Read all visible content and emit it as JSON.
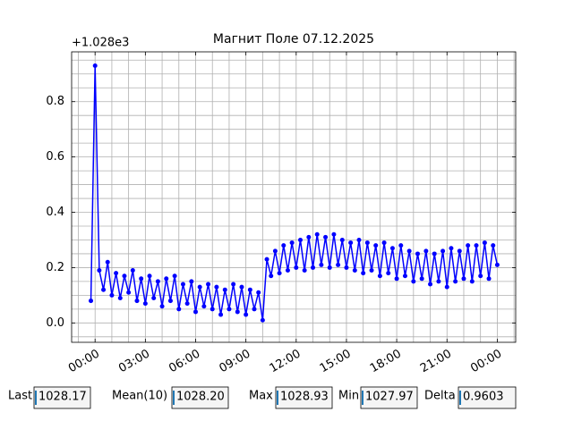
{
  "chart_data": {
    "type": "line",
    "title": "Магнит Поле 07.12.2025",
    "y_offset_label": "+1.028e3",
    "x": [
      -0.25,
      0,
      0.25,
      0.5,
      0.75,
      1,
      1.25,
      1.5,
      1.75,
      2,
      2.25,
      2.5,
      2.75,
      3,
      3.25,
      3.5,
      3.75,
      4,
      4.25,
      4.5,
      4.75,
      5,
      5.25,
      5.5,
      5.75,
      6,
      6.25,
      6.5,
      6.75,
      7,
      7.25,
      7.5,
      7.75,
      8,
      8.25,
      8.5,
      8.75,
      9,
      9.25,
      9.5,
      9.75,
      10,
      10.25,
      10.5,
      10.75,
      11,
      11.25,
      11.5,
      11.75,
      12,
      12.25,
      12.5,
      12.75,
      13,
      13.25,
      13.5,
      13.75,
      14,
      14.25,
      14.5,
      14.75,
      15,
      15.25,
      15.5,
      15.75,
      16,
      16.25,
      16.5,
      16.75,
      17,
      17.25,
      17.5,
      17.75,
      18,
      18.25,
      18.5,
      18.75,
      19,
      19.25,
      19.5,
      19.75,
      20,
      20.25,
      20.5,
      20.75,
      21,
      21.25,
      21.5,
      21.75,
      22,
      22.25,
      22.5,
      22.75,
      23,
      23.25,
      23.5,
      23.75,
      24
    ],
    "series": [
      {
        "color": "#0000ff",
        "values": [
          0.08,
          0.93,
          0.19,
          0.12,
          0.22,
          0.1,
          0.18,
          0.09,
          0.17,
          0.11,
          0.19,
          0.08,
          0.16,
          0.07,
          0.17,
          0.09,
          0.15,
          0.06,
          0.16,
          0.08,
          0.17,
          0.05,
          0.14,
          0.07,
          0.15,
          0.04,
          0.13,
          0.06,
          0.14,
          0.05,
          0.13,
          0.03,
          0.12,
          0.05,
          0.14,
          0.04,
          0.13,
          0.03,
          0.12,
          0.05,
          0.11,
          0.01,
          0.23,
          0.17,
          0.26,
          0.18,
          0.28,
          0.19,
          0.29,
          0.2,
          0.3,
          0.19,
          0.31,
          0.2,
          0.32,
          0.21,
          0.31,
          0.2,
          0.32,
          0.21,
          0.3,
          0.2,
          0.29,
          0.19,
          0.3,
          0.18,
          0.29,
          0.19,
          0.28,
          0.17,
          0.29,
          0.18,
          0.27,
          0.16,
          0.28,
          0.17,
          0.26,
          0.15,
          0.25,
          0.16,
          0.26,
          0.14,
          0.25,
          0.15,
          0.26,
          0.13,
          0.27,
          0.15,
          0.26,
          0.16,
          0.28,
          0.15,
          0.28,
          0.17,
          0.29,
          0.16,
          0.28,
          0.21
        ]
      }
    ],
    "xlim": [
      -1.4,
      25.1
    ],
    "xticks": [
      {
        "value": 0,
        "label": "00:00"
      },
      {
        "value": 3,
        "label": "03:00"
      },
      {
        "value": 6,
        "label": "06:00"
      },
      {
        "value": 9,
        "label": "09:00"
      },
      {
        "value": 12,
        "label": "12:00"
      },
      {
        "value": 15,
        "label": "15:00"
      },
      {
        "value": 18,
        "label": "18:00"
      },
      {
        "value": 21,
        "label": "21:00"
      },
      {
        "value": 24,
        "label": "00:00"
      }
    ],
    "ylim": [
      -0.07,
      0.98
    ],
    "yticks": [
      {
        "value": 0,
        "label": "0.0"
      },
      0.2,
      0.4,
      0.6,
      0.8
    ],
    "xminorticks": [
      -1,
      0,
      1,
      2,
      3,
      4,
      5,
      6,
      7,
      8,
      9,
      10,
      11,
      12,
      13,
      14,
      15,
      16,
      17,
      18,
      19,
      20,
      21,
      22,
      23,
      24,
      25
    ],
    "yminorticks": [
      -0.05,
      0,
      0.05,
      0.1,
      0.15,
      0.2,
      0.25,
      0.3,
      0.35,
      0.4,
      0.45,
      0.5,
      0.55,
      0.6,
      0.65,
      0.7,
      0.75,
      0.8,
      0.85,
      0.9,
      0.95
    ],
    "grid": true
  },
  "fields": [
    {
      "label": "Last",
      "value": "1028.17"
    },
    {
      "label": "Mean(10)",
      "value": "1028.20"
    },
    {
      "label": "Max",
      "value": "1028.93"
    },
    {
      "label": "Min",
      "value": "1027.97"
    },
    {
      "label": "Delta",
      "value": "0.9603"
    }
  ]
}
